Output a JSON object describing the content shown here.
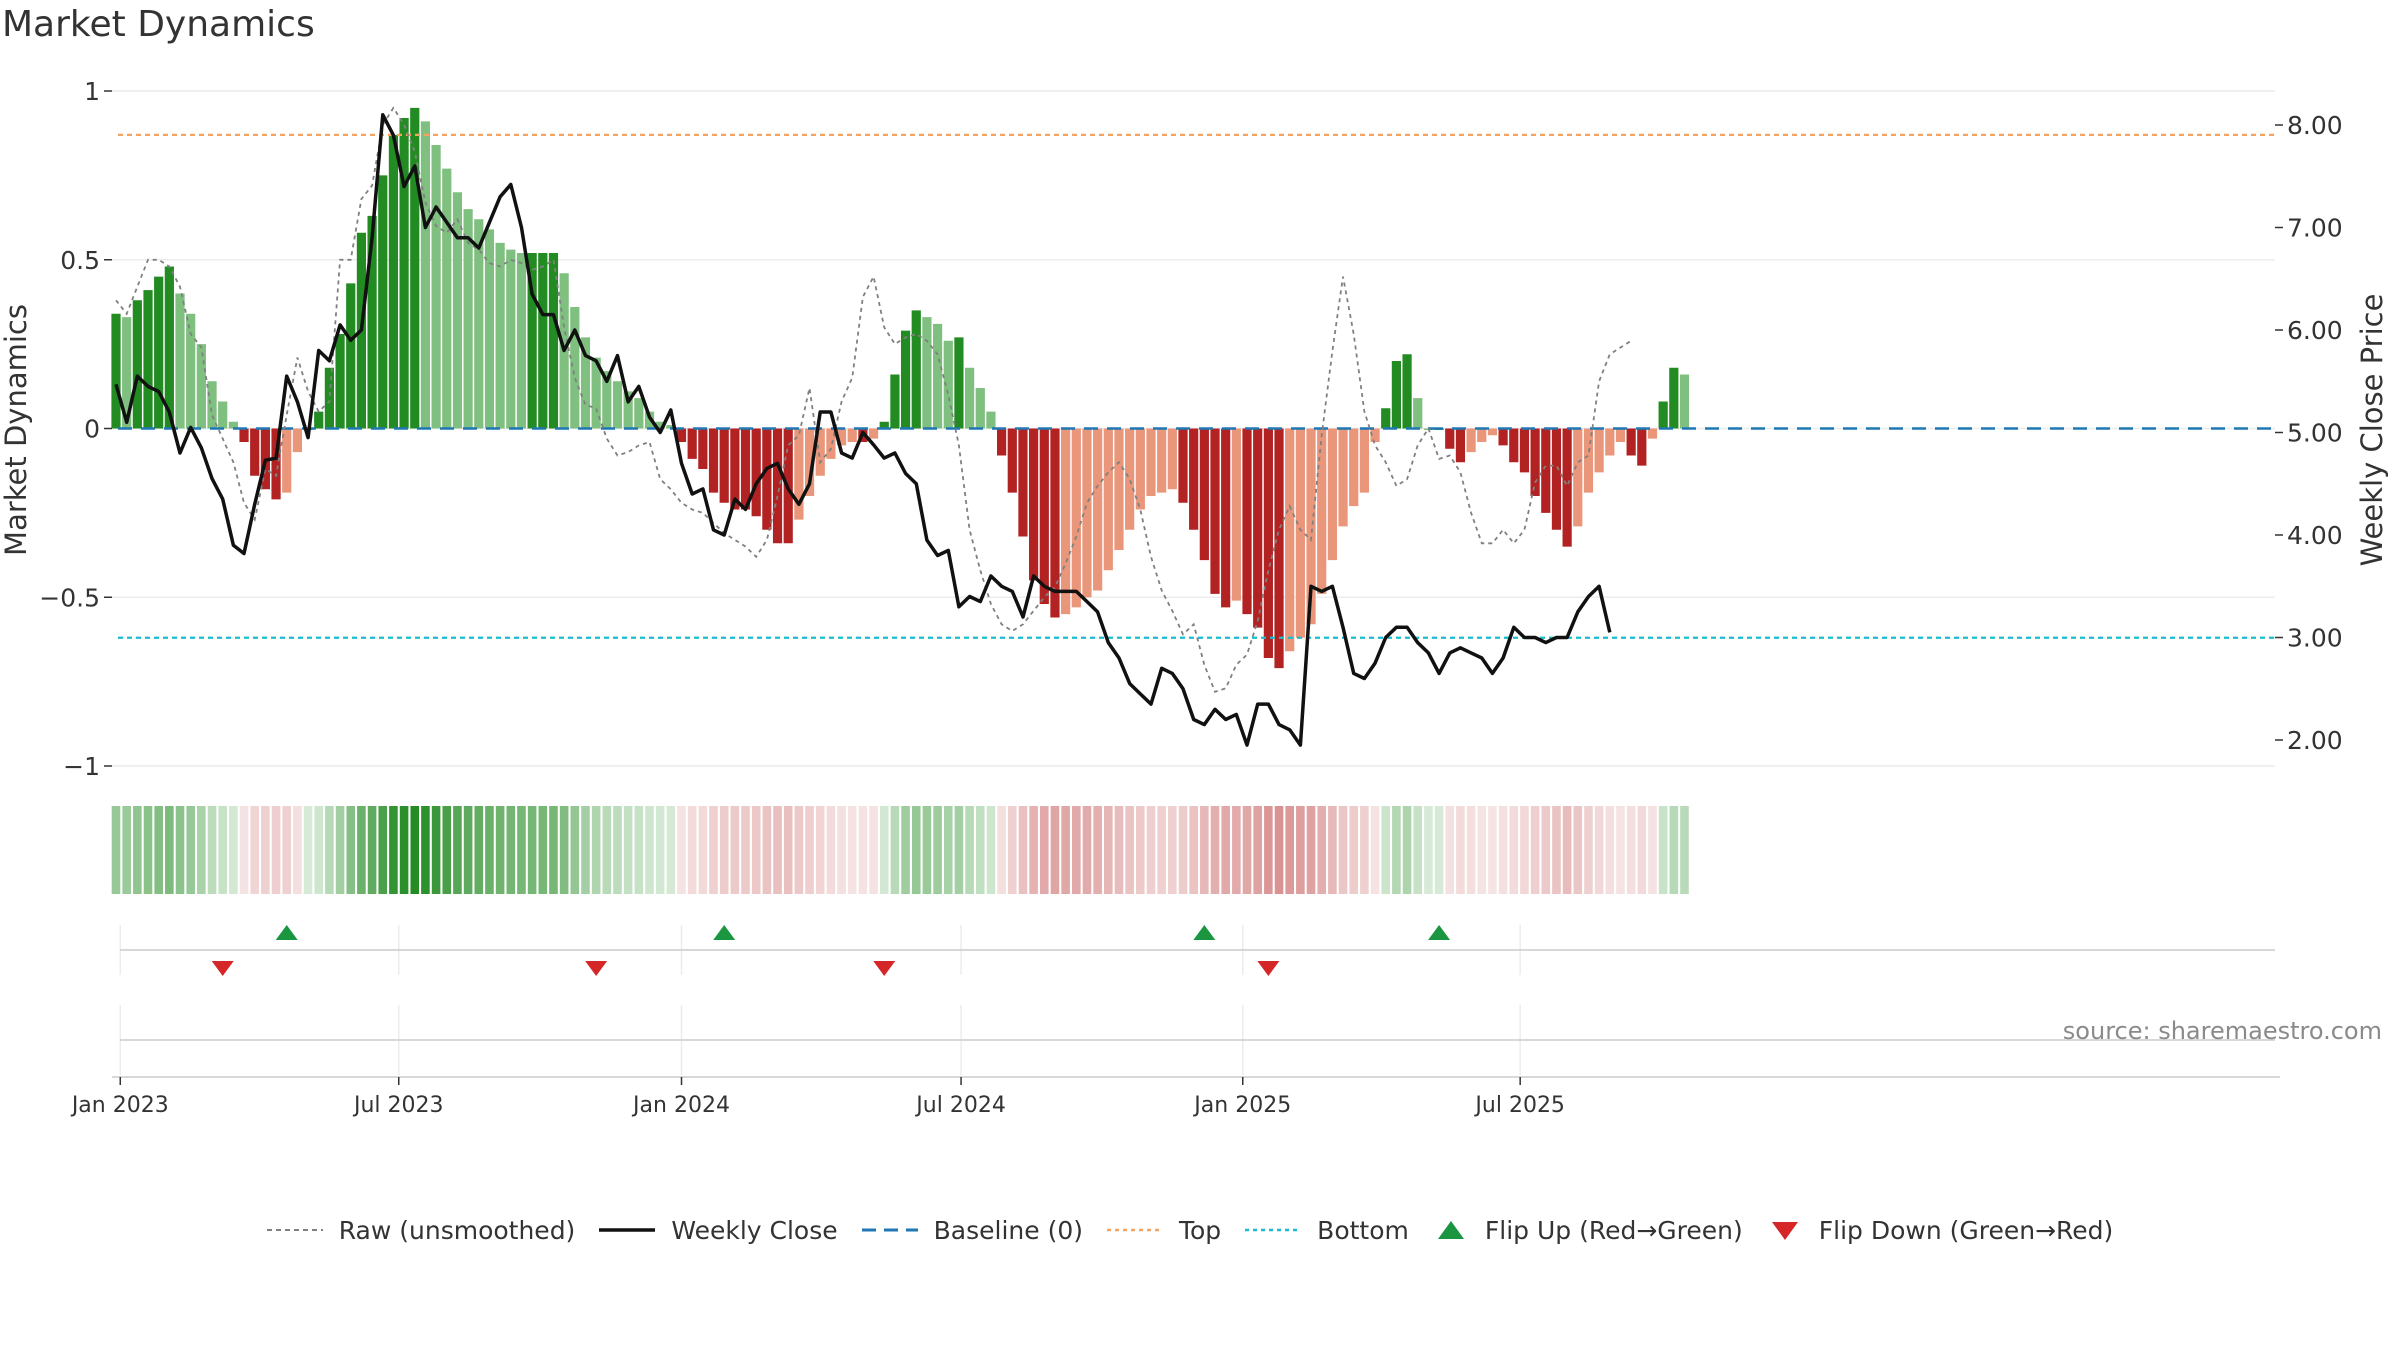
{
  "title": "Market Dynamics",
  "source": "source: sharemaestro.com",
  "colors": {
    "strong_green": "#228b22",
    "light_green": "#7fbf7f",
    "strong_red": "#b22222",
    "light_red": "#e9967a",
    "close_line": "#111111",
    "raw_line": "#808080",
    "baseline": "#1f77b4",
    "top": "#f4a460",
    "bottom": "#17becf",
    "flip_up": "#1a9641",
    "flip_down": "#d62728"
  },
  "legend": [
    {
      "key": "raw",
      "label": "Raw (unsmoothed)"
    },
    {
      "key": "close",
      "label": "Weekly Close"
    },
    {
      "key": "baseline",
      "label": "Baseline (0)"
    },
    {
      "key": "top",
      "label": "Top"
    },
    {
      "key": "bottom",
      "label": "Bottom"
    },
    {
      "key": "flip_up",
      "label": "Flip Up (Red→Green)"
    },
    {
      "key": "flip_down",
      "label": "Flip Down (Green→Red)"
    }
  ],
  "chart_data": {
    "type": "bar",
    "title": "Market Dynamics",
    "ylabel_left": "Market Dynamics",
    "ylabel_right": "Weekly Close Price",
    "ylim_left": [
      -1,
      1
    ],
    "ylim_right": [
      1.7,
      8.35
    ],
    "left_ticks": [
      {
        "v": 1,
        "label": "1"
      },
      {
        "v": 0.5,
        "label": "0.5"
      },
      {
        "v": 0,
        "label": "0"
      },
      {
        "v": -0.5,
        "label": "−0.5"
      },
      {
        "v": -1,
        "label": "−1"
      }
    ],
    "right_ticks": [
      "8.00",
      "7.00",
      "6.00",
      "5.00",
      "4.00",
      "3.00",
      "2.00"
    ],
    "x_ticks": [
      "Jan 2023",
      "Jul 2023",
      "Jan 2024",
      "Jul 2024",
      "Jan 2025",
      "Jul 2025"
    ],
    "x_tick_index": [
      0.4,
      26.5,
      53,
      79.2,
      105.6,
      131.6
    ],
    "top_level": 0.87,
    "bottom_level": -0.62,
    "baseline": 0,
    "momentum": [
      0.34,
      0.33,
      0.38,
      0.41,
      0.45,
      0.48,
      0.4,
      0.34,
      0.25,
      0.14,
      0.08,
      0.02,
      -0.04,
      -0.14,
      -0.18,
      -0.21,
      -0.19,
      -0.07,
      0.0,
      0.05,
      0.18,
      0.28,
      0.43,
      0.58,
      0.63,
      0.75,
      0.87,
      0.92,
      0.95,
      0.91,
      0.84,
      0.77,
      0.7,
      0.65,
      0.62,
      0.59,
      0.55,
      0.53,
      0.52,
      0.52,
      0.52,
      0.52,
      0.46,
      0.36,
      0.27,
      0.21,
      0.17,
      0.14,
      0.11,
      0.09,
      0.05,
      0.02,
      0.01,
      -0.04,
      -0.09,
      -0.12,
      -0.19,
      -0.22,
      -0.24,
      -0.24,
      -0.26,
      -0.3,
      -0.34,
      -0.34,
      -0.27,
      -0.2,
      -0.14,
      -0.09,
      -0.05,
      -0.04,
      -0.04,
      -0.03,
      0.02,
      0.16,
      0.29,
      0.35,
      0.33,
      0.31,
      0.26,
      0.27,
      0.18,
      0.12,
      0.05,
      -0.08,
      -0.19,
      -0.32,
      -0.45,
      -0.52,
      -0.56,
      -0.55,
      -0.53,
      -0.5,
      -0.48,
      -0.42,
      -0.36,
      -0.3,
      -0.24,
      -0.2,
      -0.19,
      -0.18,
      -0.22,
      -0.3,
      -0.39,
      -0.49,
      -0.53,
      -0.51,
      -0.55,
      -0.59,
      -0.68,
      -0.71,
      -0.66,
      -0.62,
      -0.58,
      -0.49,
      -0.39,
      -0.29,
      -0.23,
      -0.19,
      -0.04,
      0.06,
      0.2,
      0.22,
      0.09,
      0.0,
      0.0,
      -0.06,
      -0.1,
      -0.07,
      -0.04,
      -0.02,
      -0.05,
      -0.1,
      -0.13,
      -0.2,
      -0.25,
      -0.3,
      -0.35,
      -0.29,
      -0.19,
      -0.13,
      -0.08,
      -0.04,
      -0.08,
      -0.11,
      -0.03,
      0.08,
      0.18,
      0.16
    ],
    "close": [
      5.47,
      5.1,
      5.55,
      5.45,
      5.4,
      5.2,
      4.8,
      5.05,
      4.85,
      4.55,
      4.35,
      3.9,
      3.82,
      4.3,
      4.73,
      4.75,
      5.55,
      5.3,
      4.95,
      5.8,
      5.7,
      6.05,
      5.9,
      6.0,
      6.9,
      8.1,
      7.9,
      7.4,
      7.6,
      7.0,
      7.2,
      7.05,
      6.9,
      6.9,
      6.8,
      7.05,
      7.3,
      7.42,
      7.0,
      6.35,
      6.15,
      6.15,
      5.8,
      6.0,
      5.75,
      5.7,
      5.5,
      5.75,
      5.3,
      5.45,
      5.15,
      5.0,
      5.22,
      4.7,
      4.4,
      4.45,
      4.05,
      4.0,
      4.35,
      4.25,
      4.5,
      4.65,
      4.7,
      4.45,
      4.3,
      4.5,
      5.2,
      5.2,
      4.8,
      4.75,
      5.0,
      4.88,
      4.75,
      4.8,
      4.6,
      4.5,
      3.95,
      3.8,
      3.85,
      3.3,
      3.4,
      3.35,
      3.6,
      3.5,
      3.45,
      3.2,
      3.6,
      3.5,
      3.45,
      3.45,
      3.45,
      3.35,
      3.25,
      2.95,
      2.8,
      2.55,
      2.45,
      2.35,
      2.7,
      2.65,
      2.5,
      2.2,
      2.15,
      2.3,
      2.2,
      2.25,
      1.95,
      2.35,
      2.35,
      2.15,
      2.1,
      1.95,
      3.5,
      3.45,
      3.5,
      3.1,
      2.65,
      2.6,
      2.75,
      3.0,
      3.1,
      3.1,
      2.95,
      2.85,
      2.65,
      2.85,
      2.9,
      2.85,
      2.8,
      2.65,
      2.8,
      3.1,
      3.0,
      3.0,
      2.95,
      3.0,
      3.0,
      3.25,
      3.4,
      3.5,
      3.05
    ],
    "raw": [
      0.38,
      0.34,
      0.42,
      0.5,
      0.5,
      0.48,
      0.42,
      0.28,
      0.24,
      0.04,
      -0.03,
      -0.1,
      -0.22,
      -0.27,
      -0.12,
      -0.14,
      0.04,
      0.21,
      0.11,
      0.05,
      0.08,
      0.5,
      0.5,
      0.68,
      0.72,
      0.9,
      0.95,
      0.9,
      0.82,
      0.67,
      0.6,
      0.58,
      0.62,
      0.55,
      0.53,
      0.49,
      0.48,
      0.5,
      0.49,
      0.47,
      0.48,
      0.5,
      0.3,
      0.15,
      0.07,
      0.06,
      -0.03,
      -0.08,
      -0.07,
      -0.05,
      -0.04,
      -0.15,
      -0.18,
      -0.22,
      -0.24,
      -0.25,
      -0.28,
      -0.31,
      -0.33,
      -0.35,
      -0.38,
      -0.33,
      -0.2,
      -0.05,
      -0.02,
      0.12,
      -0.1,
      -0.06,
      0.08,
      0.15,
      0.39,
      0.45,
      0.3,
      0.25,
      0.27,
      0.28,
      0.26,
      0.22,
      0.1,
      -0.05,
      -0.3,
      -0.42,
      -0.52,
      -0.58,
      -0.6,
      -0.58,
      -0.54,
      -0.5,
      -0.47,
      -0.4,
      -0.32,
      -0.22,
      -0.17,
      -0.13,
      -0.1,
      -0.15,
      -0.24,
      -0.38,
      -0.48,
      -0.54,
      -0.61,
      -0.58,
      -0.7,
      -0.78,
      -0.77,
      -0.7,
      -0.67,
      -0.57,
      -0.42,
      -0.3,
      -0.23,
      -0.3,
      -0.33,
      -0.02,
      0.23,
      0.45,
      0.28,
      0.05,
      -0.05,
      -0.1,
      -0.17,
      -0.15,
      -0.05,
      0.0,
      -0.09,
      -0.08,
      -0.13,
      -0.25,
      -0.34,
      -0.34,
      -0.3,
      -0.34,
      -0.3,
      -0.16,
      -0.11,
      -0.11,
      -0.17,
      -0.1,
      -0.08,
      0.14,
      0.22,
      0.24,
      0.26
    ],
    "flip_up_index": [
      16,
      57,
      102,
      124
    ],
    "flip_down_index": [
      10,
      45,
      72,
      108
    ]
  }
}
